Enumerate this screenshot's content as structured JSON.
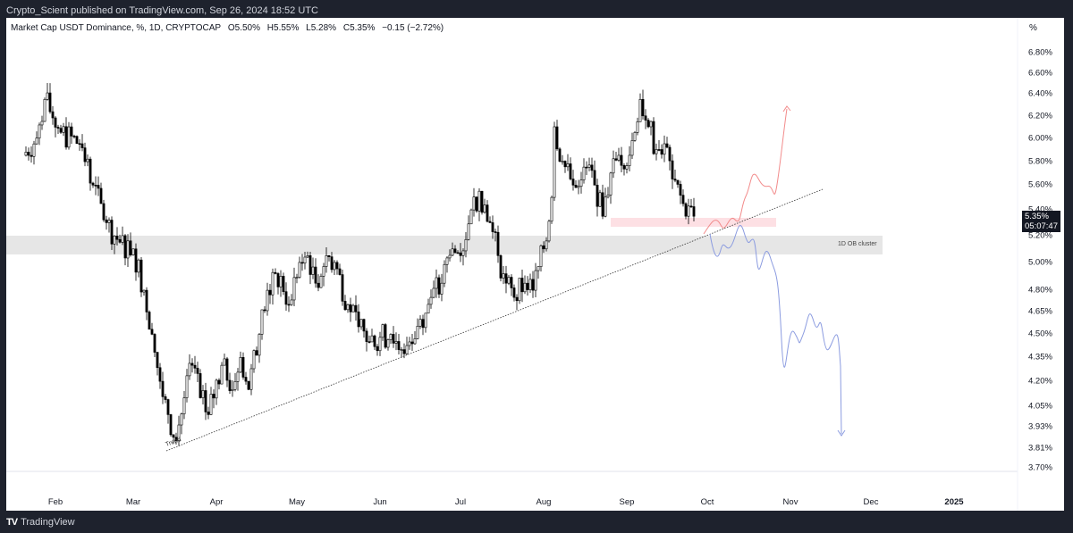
{
  "header": {
    "published": "Crypto_Scient published on TradingView.com, Sep 26, 2024 18:52 UTC"
  },
  "legend": {
    "symbol": "Market Cap USDT Dominance, %, 1D, CRYPTOCAP",
    "open": "O5.50%",
    "high": "H5.55%",
    "low": "L5.28%",
    "close": "C5.35%",
    "change": "−0.15 (−2.72%)"
  },
  "footer": {
    "brand": "TradingView",
    "logo": "17"
  },
  "chart_data": {
    "type": "candlestick",
    "title": "Market Cap USDT Dominance, %, 1D, CRYPTOCAP",
    "y_unit": "%",
    "y_scale": "log",
    "ylim": [
      3.7,
      6.8
    ],
    "y_ticks": [
      "6.80%",
      "6.60%",
      "6.40%",
      "6.20%",
      "6.00%",
      "5.80%",
      "5.60%",
      "5.40%",
      "5.20%",
      "5.00%",
      "4.80%",
      "4.65%",
      "4.50%",
      "4.35%",
      "4.20%",
      "4.05%",
      "3.93%",
      "3.81%",
      "3.70%"
    ],
    "x_ticks": [
      "Feb",
      "Mar",
      "Apr",
      "May",
      "Jun",
      "Jul",
      "Aug",
      "Sep",
      "Oct",
      "Nov",
      "Dec",
      "2025"
    ],
    "last_price": "5.35%",
    "countdown": "05:07:47",
    "close_path": [
      [
        "2024-01-20",
        5.85
      ],
      [
        "2024-01-25",
        6.0
      ],
      [
        "2024-01-28",
        6.35
      ],
      [
        "2024-02-03",
        6.05
      ],
      [
        "2024-02-10",
        5.95
      ],
      [
        "2024-02-15",
        5.6
      ],
      [
        "2024-02-20",
        5.3
      ],
      [
        "2024-02-25",
        5.15
      ],
      [
        "2024-03-01",
        5.1
      ],
      [
        "2024-03-05",
        4.8
      ],
      [
        "2024-03-08",
        4.5
      ],
      [
        "2024-03-11",
        4.2
      ],
      [
        "2024-03-14",
        4.0
      ],
      [
        "2024-03-17",
        3.85
      ],
      [
        "2024-03-20",
        4.1
      ],
      [
        "2024-03-23",
        4.3
      ],
      [
        "2024-03-26",
        4.1
      ],
      [
        "2024-03-29",
        4.0
      ],
      [
        "2024-04-03",
        4.3
      ],
      [
        "2024-04-07",
        4.15
      ],
      [
        "2024-04-10",
        4.35
      ],
      [
        "2024-04-13",
        4.15
      ],
      [
        "2024-04-17",
        4.5
      ],
      [
        "2024-04-20",
        4.8
      ],
      [
        "2024-04-25",
        4.9
      ],
      [
        "2024-04-28",
        4.7
      ],
      [
        "2024-05-02",
        5.0
      ],
      [
        "2024-05-05",
        5.05
      ],
      [
        "2024-05-08",
        4.85
      ],
      [
        "2024-05-12",
        5.05
      ],
      [
        "2024-05-15",
        5.0
      ],
      [
        "2024-05-20",
        4.7
      ],
      [
        "2024-05-24",
        4.55
      ],
      [
        "2024-05-28",
        4.45
      ],
      [
        "2024-06-01",
        4.48
      ],
      [
        "2024-06-05",
        4.5
      ],
      [
        "2024-06-09",
        4.4
      ],
      [
        "2024-06-12",
        4.45
      ],
      [
        "2024-06-16",
        4.6
      ],
      [
        "2024-06-20",
        4.75
      ],
      [
        "2024-06-24",
        4.85
      ],
      [
        "2024-06-28",
        5.1
      ],
      [
        "2024-07-01",
        5.05
      ],
      [
        "2024-07-05",
        5.4
      ],
      [
        "2024-07-08",
        5.55
      ],
      [
        "2024-07-12",
        5.3
      ],
      [
        "2024-07-15",
        5.05
      ],
      [
        "2024-07-18",
        4.85
      ],
      [
        "2024-07-21",
        4.75
      ],
      [
        "2024-07-25",
        4.85
      ],
      [
        "2024-07-28",
        4.8
      ],
      [
        "2024-08-01",
        5.1
      ],
      [
        "2024-08-04",
        5.5
      ],
      [
        "2024-08-05",
        6.1
      ],
      [
        "2024-08-08",
        5.8
      ],
      [
        "2024-08-12",
        5.6
      ],
      [
        "2024-08-16",
        5.75
      ],
      [
        "2024-08-20",
        5.6
      ],
      [
        "2024-08-23",
        5.35
      ],
      [
        "2024-08-26",
        5.7
      ],
      [
        "2024-08-29",
        5.85
      ],
      [
        "2024-09-02",
        5.85
      ],
      [
        "2024-09-06",
        6.35
      ],
      [
        "2024-09-09",
        6.1
      ],
      [
        "2024-09-12",
        5.9
      ],
      [
        "2024-09-15",
        5.95
      ],
      [
        "2024-09-18",
        5.65
      ],
      [
        "2024-09-22",
        5.45
      ],
      [
        "2024-09-26",
        5.35
      ]
    ],
    "annotations": {
      "trendline_label": "Trend",
      "zone_label": "1D OB cluster",
      "zone_range": [
        5.07,
        5.22
      ],
      "supply_zone": [
        5.28,
        5.34
      ]
    },
    "colors": {
      "up_body": "#ffffff",
      "down_body": "#000000",
      "bullish_path": "#f28b8b",
      "bearish_path": "#8c9ce0",
      "zone": "#e6e6e6",
      "supply": "#fde0e4"
    }
  }
}
